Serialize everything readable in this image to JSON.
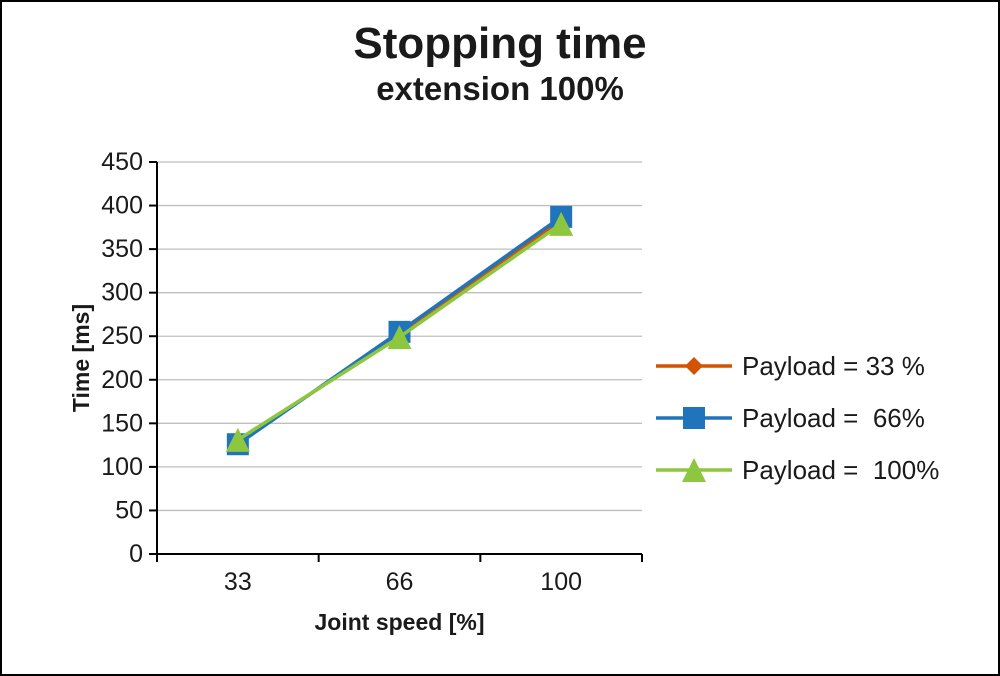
{
  "chart_data": {
    "type": "line",
    "title": "Stopping time",
    "subtitle": "extension 100%",
    "xlabel": "Joint speed [%]",
    "ylabel": "Time [ms]",
    "categories": [
      "33",
      "66",
      "100"
    ],
    "ylim": [
      0,
      450
    ],
    "y_ticks": [
      0,
      50,
      100,
      150,
      200,
      250,
      300,
      350,
      400,
      450
    ],
    "grid": true,
    "legend_position": "right",
    "colors": {
      "axis": "#000000",
      "gridline": "#bfbfbf",
      "text": "#1a1a1a"
    },
    "series": [
      {
        "name": "Payload = 33 %",
        "color": "#d35400",
        "marker": "diamond",
        "values": [
          129,
          251,
          383
        ]
      },
      {
        "name": "Payload =  66%",
        "color": "#2074bc",
        "marker": "square",
        "values": [
          126,
          255,
          387
        ]
      },
      {
        "name": "Payload =  100%",
        "color": "#8dc63f",
        "marker": "triangle",
        "values": [
          131,
          249,
          379
        ]
      }
    ]
  }
}
